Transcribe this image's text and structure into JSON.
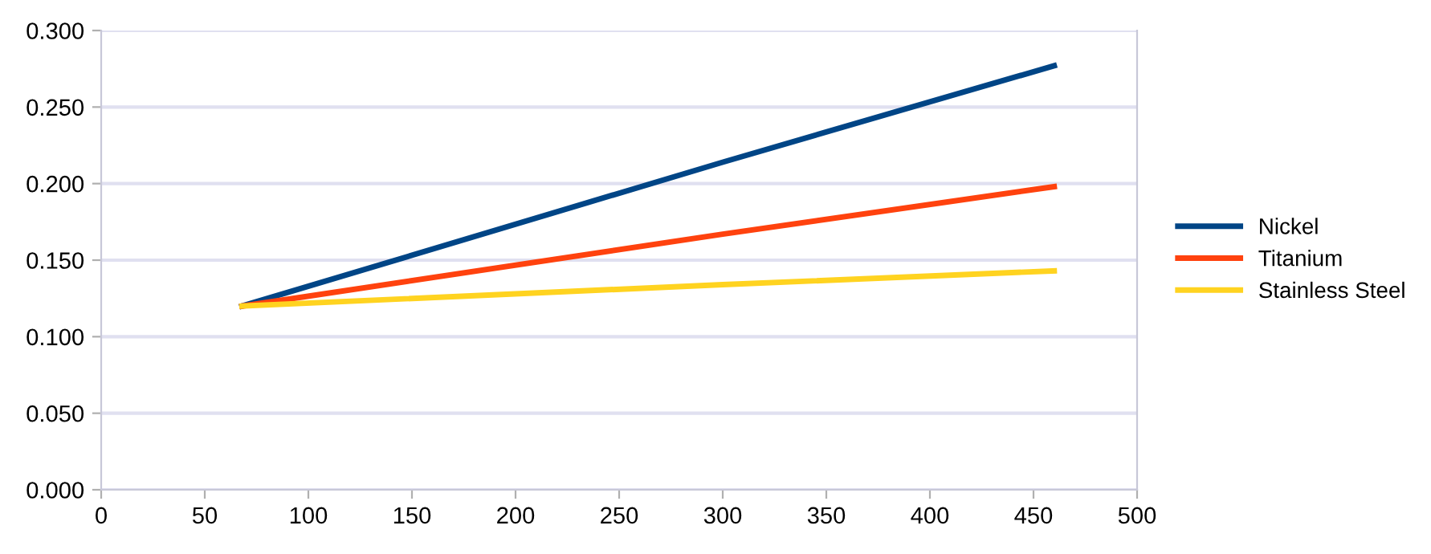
{
  "chart_data": {
    "type": "line",
    "xlim": [
      0,
      500
    ],
    "xticks": [
      0,
      50,
      100,
      150,
      200,
      250,
      300,
      350,
      400,
      450,
      500
    ],
    "ylim": [
      0,
      0.3
    ],
    "yticks": [
      {
        "value": 0,
        "label": "0.000"
      },
      {
        "value": 0.05,
        "label": "0.050"
      },
      {
        "value": 0.1,
        "label": "0.100"
      },
      {
        "value": 0.15,
        "label": "0.150"
      },
      {
        "value": 0.2,
        "label": "0.200"
      },
      {
        "value": 0.25,
        "label": "0.250"
      },
      {
        "value": 0.3,
        "label": "0.300"
      }
    ],
    "grid": "y",
    "legend": "right",
    "marker": "none",
    "line_style": "solid",
    "series": [
      {
        "name": "Nickel",
        "color": "#004586",
        "x": [
          68,
          300,
          460
        ],
        "values": [
          0.12,
          0.214,
          0.277
        ]
      },
      {
        "name": "Titanium",
        "color": "#ff420e",
        "x": [
          68,
          300,
          460
        ],
        "values": [
          0.12,
          0.167,
          0.198
        ]
      },
      {
        "name": "Stainless Steel",
        "color": "#ffd320",
        "x": [
          68,
          300,
          460
        ],
        "values": [
          0.12,
          0.134,
          0.143
        ]
      }
    ]
  }
}
